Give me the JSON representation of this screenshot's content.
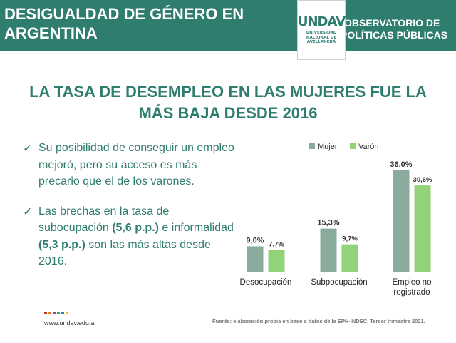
{
  "header": {
    "left_line1": "DESIGUALDAD DE GÉNERO EN",
    "left_line2": "ARGENTINA",
    "right_line1": "OBSERVATORIO DE",
    "right_line2": "POLÍTICAS PÚBLICAS",
    "logo_mark": "UNDAV",
    "logo_line1": "UNIVERSIDAD",
    "logo_line2": "NACIONAL DE",
    "logo_line3": "AVELLANEDA",
    "band_color": "#2e7d6f"
  },
  "title": {
    "line1": "LA TASA DE DESEMPLEO EN LAS MUJERES FUE LA",
    "line2": "MÁS BAJA DESDE 2016"
  },
  "bullets": [
    {
      "text": "Su posibilidad de conseguir un empleo mejoró, pero su acceso es más precario que el de los varones."
    },
    {
      "part1": "Las brechas en la tasa de subocupación ",
      "bold1": "(5,6 p.p.)",
      "part2": "  e informalidad ",
      "bold2": "(5,3 p.p.)",
      "part3": " son las más altas desde 2016."
    }
  ],
  "chart_data": {
    "type": "bar",
    "categories": [
      "Desocupación",
      "Subpocupación",
      "Empleo no registrado"
    ],
    "category_lines": [
      [
        "Desocupación"
      ],
      [
        "Subpocupación"
      ],
      [
        "Empleo no",
        "registrado"
      ]
    ],
    "series": [
      {
        "name": "Mujer",
        "values": [
          9.0,
          15.3,
          36.0
        ],
        "labels": [
          "9,0%",
          "15,3%",
          "36,0%"
        ],
        "color": "#8aab9b"
      },
      {
        "name": "Varón",
        "values": [
          7.7,
          9.7,
          30.6
        ],
        "labels": [
          "7,7%",
          "9,7%",
          "30,6%"
        ],
        "color": "#92d278"
      }
    ],
    "ylim": [
      0,
      40
    ],
    "grid": false,
    "legend_position": "top"
  },
  "footer": {
    "url": "www.undav.edu.ar",
    "source": "Fuente: elaboración propia en base a datos de la EPH-INDEC. Tercer trimestre 2021.",
    "dot_colors": [
      "#c0392b",
      "#e67e22",
      "#8e44ad",
      "#27ae60",
      "#2980b9",
      "#f1c40f"
    ]
  }
}
